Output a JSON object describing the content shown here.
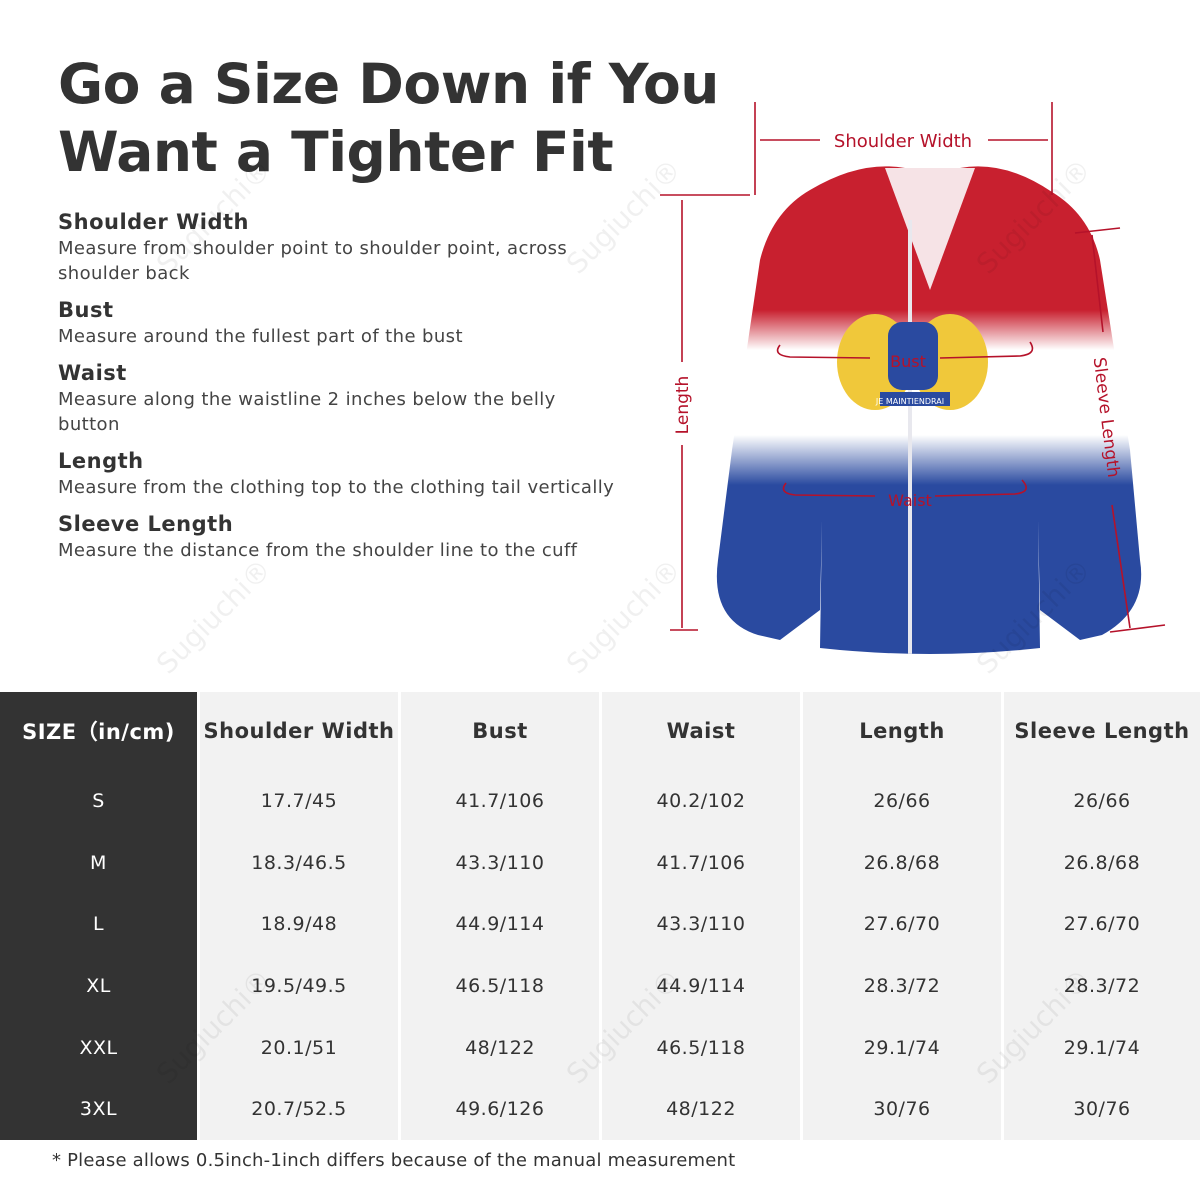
{
  "title": {
    "line1": "Go a Size Down if You",
    "line2": "Want a Tighter Fit"
  },
  "measurements": [
    {
      "name": "Shoulder Width",
      "desc": "Measure from shoulder point to shoulder point, across shoulder back"
    },
    {
      "name": "Bust",
      "desc": "Measure around the fullest part of the bust"
    },
    {
      "name": "Waist",
      "desc": "Measure along the waistline 2 inches below the belly button"
    },
    {
      "name": "Length",
      "desc": "Measure from the clothing top to the clothing tail vertically"
    },
    {
      "name": "Sleeve Length",
      "desc": "Measure the distance from the shoulder line to the cuff"
    }
  ],
  "diagram_labels": {
    "shoulder": "Shoulder Width",
    "bust": "Bust",
    "waist": "Waist",
    "length": "Length",
    "sleeve": "Sleeve Length",
    "motto": "JE MAINTIENDRAI"
  },
  "table": {
    "size_header": "SIZE（in/cm)",
    "headers": [
      "Shoulder Width",
      "Bust",
      "Waist",
      "Length",
      "Sleeve Length"
    ],
    "sizes": [
      "S",
      "M",
      "L",
      "XL",
      "XXL",
      "3XL"
    ],
    "columns": [
      [
        "17.7/45",
        "18.3/46.5",
        "18.9/48",
        "19.5/49.5",
        "20.1/51",
        "20.7/52.5"
      ],
      [
        "41.7/106",
        "43.3/110",
        "44.9/114",
        "46.5/118",
        "48/122",
        "49.6/126"
      ],
      [
        "40.2/102",
        "41.7/106",
        "43.3/110",
        "44.9/114",
        "46.5/118",
        "48/122"
      ],
      [
        "26/66",
        "26.8/68",
        "27.6/70",
        "28.3/72",
        "29.1/74",
        "30/76"
      ],
      [
        "26/66",
        "26.8/68",
        "27.6/70",
        "28.3/72",
        "29.1/74",
        "30/76"
      ]
    ]
  },
  "footnote": "* Please allows 0.5inch-1inch differs because of the  manual measurement",
  "watermark": "Sugiuchi®",
  "colors": {
    "dark": "#333333",
    "cell": "#f2f2f2",
    "annotation": "#b5122a",
    "flag_red": "#c8202f",
    "flag_blue": "#2a4aa0"
  }
}
